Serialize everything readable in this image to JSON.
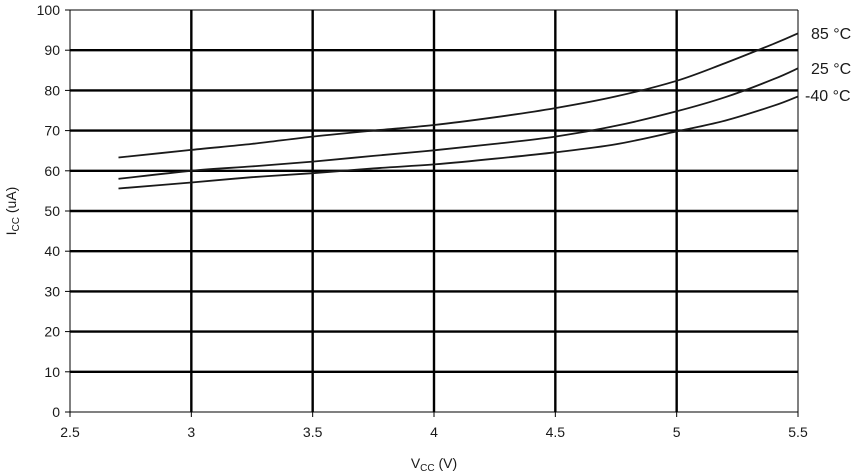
{
  "chart_data": {
    "type": "line",
    "title": "",
    "xlabel": {
      "main": "V",
      "sub": "CC",
      "unit": " (V)"
    },
    "ylabel": {
      "main": "I",
      "sub": "CC",
      "unit": " (uA)"
    },
    "xlim": [
      2.5,
      5.5
    ],
    "ylim": [
      0,
      100
    ],
    "xticks": [
      2.5,
      3,
      3.5,
      4,
      4.5,
      5,
      5.5
    ],
    "xtick_labels": [
      "2.5",
      "3",
      "3.5",
      "4",
      "4.5",
      "5",
      "5.5"
    ],
    "yticks": [
      0,
      10,
      20,
      30,
      40,
      50,
      60,
      70,
      80,
      90,
      100
    ],
    "ytick_labels": [
      "0",
      "10",
      "20",
      "30",
      "40",
      "50",
      "60",
      "70",
      "80",
      "90",
      "100"
    ],
    "grid": true,
    "legend": "inline-right",
    "series": [
      {
        "name": "85 °C",
        "x": [
          2.7,
          3.0,
          3.25,
          3.5,
          3.75,
          4.0,
          4.25,
          4.5,
          4.75,
          5.0,
          5.2,
          5.4,
          5.5
        ],
        "y": [
          63.3,
          65.2,
          66.7,
          68.5,
          70.0,
          71.4,
          73.3,
          75.6,
          78.5,
          82.4,
          86.8,
          91.6,
          94.2
        ]
      },
      {
        "name": "25 °C",
        "x": [
          2.7,
          3.0,
          3.25,
          3.5,
          3.75,
          4.0,
          4.25,
          4.5,
          4.75,
          5.0,
          5.2,
          5.4,
          5.5
        ],
        "y": [
          58.0,
          60.0,
          61.1,
          62.3,
          63.7,
          65.1,
          66.7,
          68.5,
          71.2,
          74.8,
          78.3,
          82.8,
          85.5
        ]
      },
      {
        "name": "-40 °C",
        "x": [
          2.7,
          3.0,
          3.25,
          3.5,
          3.75,
          4.0,
          4.25,
          4.5,
          4.75,
          5.0,
          5.2,
          5.4,
          5.5
        ],
        "y": [
          55.6,
          57.1,
          58.4,
          59.4,
          60.6,
          61.6,
          63.0,
          64.6,
          66.6,
          69.8,
          72.5,
          76.2,
          78.5
        ]
      }
    ]
  }
}
